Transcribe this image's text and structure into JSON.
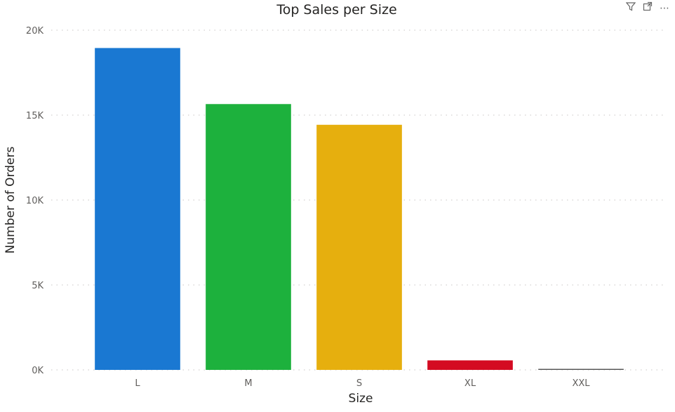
{
  "toolbar": {
    "filter_icon": "filter-icon",
    "focus_icon": "focus-mode-icon",
    "more_icon": "more-options-icon",
    "more_label": "⋯"
  },
  "chart_data": {
    "type": "bar",
    "title": "Top Sales per Size",
    "xlabel": "Size",
    "ylabel": "Number of Orders",
    "categories": [
      "L",
      "M",
      "S",
      "XL",
      "XXL"
    ],
    "values": [
      18950,
      15650,
      14430,
      560,
      60
    ],
    "colors": [
      "#1a78d2",
      "#1db13d",
      "#e6af0e",
      "#d40b22",
      "#555555"
    ],
    "ylim": [
      0,
      20000
    ],
    "yticks": [
      0,
      5000,
      10000,
      15000,
      20000
    ],
    "ytick_labels": [
      "0K",
      "5K",
      "10K",
      "15K",
      "20K"
    ],
    "grid": true,
    "legend": "none"
  }
}
